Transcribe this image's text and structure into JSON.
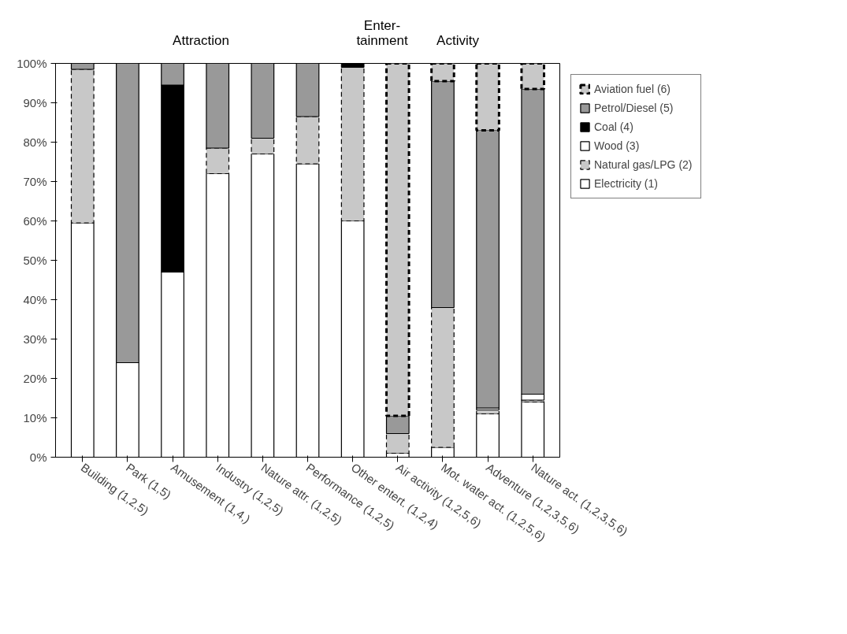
{
  "chart_data": {
    "type": "bar",
    "stacked": true,
    "annotations": [
      "Attraction",
      "Enter-\ntainment",
      "Activity"
    ],
    "categories": [
      "Building (1,2,5)",
      "Park (1,5)",
      "Amusement (1,4,)",
      "Industry (1,2,5)",
      "Nature attr. (1,2,5)",
      "Performance (1,2,5)",
      "Other entert. (1,2,4)",
      "Air activity (1,2,5,6)",
      "Mot. water act. (1,2,5,6)",
      "Adventure (1,2,3,5,6)",
      "Nature act. (1,2,3,5,6)"
    ],
    "series": [
      {
        "name": "Electricity (1)",
        "color": "#ffffff",
        "line_style": "solid",
        "values": [
          59.5,
          24,
          47,
          72,
          77,
          74.5,
          60,
          1,
          2.5,
          11,
          14
        ]
      },
      {
        "name": "Natural gas/LPG (2)",
        "color": "#c8c8c8",
        "line_style": "dashed",
        "values": [
          39,
          null,
          null,
          6.5,
          4,
          12,
          39,
          5,
          35.5,
          1,
          0.5
        ]
      },
      {
        "name": "Wood (3)",
        "color": "#ffffff",
        "line_style": "solid",
        "values": [
          null,
          null,
          null,
          null,
          null,
          null,
          null,
          null,
          null,
          0.5,
          1.5
        ]
      },
      {
        "name": "Coal (4)",
        "color": "#000000",
        "line_style": "solid",
        "values": [
          null,
          null,
          47.5,
          null,
          null,
          null,
          1,
          null,
          null,
          null,
          null
        ]
      },
      {
        "name": "Petrol/Diesel (5)",
        "color": "#999999",
        "line_style": "solid",
        "values": [
          1.5,
          76,
          5.5,
          21.5,
          19,
          13.5,
          null,
          4.5,
          57.5,
          70.5,
          77.5
        ]
      },
      {
        "name": "Aviation fuel (6)",
        "color": "#c8c8c8",
        "line_style": "dashed",
        "values": [
          null,
          null,
          null,
          null,
          null,
          null,
          null,
          89.5,
          4.5,
          17,
          6.5
        ]
      }
    ],
    "ylim": [
      0,
      100
    ],
    "yticks": [
      {
        "value": 0,
        "label": "0%"
      },
      {
        "value": 10,
        "label": "10%"
      },
      {
        "value": 20,
        "label": "20%"
      },
      {
        "value": 30,
        "label": "30%"
      },
      {
        "value": 40,
        "label": "40%"
      },
      {
        "value": 50,
        "label": "50%"
      },
      {
        "value": 60,
        "label": "60%"
      },
      {
        "value": 70,
        "label": "70%"
      },
      {
        "value": 80,
        "label": "80%"
      },
      {
        "value": 90,
        "label": "90%"
      },
      {
        "value": 100,
        "label": "100%"
      }
    ],
    "grid": false,
    "legend": "right"
  }
}
